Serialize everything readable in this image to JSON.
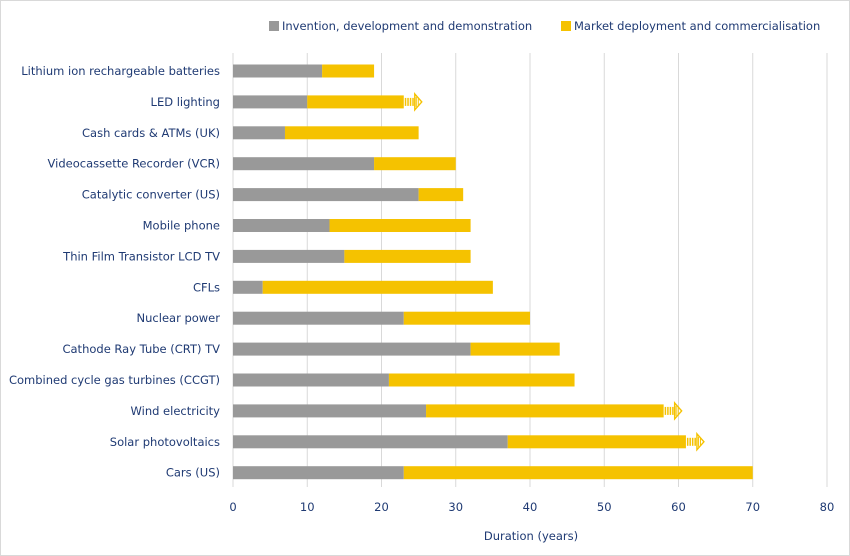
{
  "chart_data": {
    "type": "bar",
    "orientation": "horizontal",
    "stacked": true,
    "title": "",
    "xlabel": "Duration (years)",
    "ylabel": "",
    "xlim": [
      0,
      80
    ],
    "xticks": [
      0,
      10,
      20,
      30,
      40,
      50,
      60,
      70,
      80
    ],
    "grid": true,
    "legend_position": "top",
    "colors": {
      "Invention, development and demonstration": "#999999",
      "Market deployment and commercialisation": "#f5c200"
    },
    "categories": [
      "Lithium ion rechargeable batteries",
      "LED lighting",
      "Cash cards & ATMs (UK)",
      "Videocassette Recorder (VCR)",
      "Catalytic converter (US)",
      "Mobile phone",
      "Thin Film Transistor LCD TV",
      "CFLs",
      "Nuclear power",
      "Cathode Ray Tube (CRT) TV",
      "Combined cycle gas turbines (CCGT)",
      "Wind electricity",
      "Solar photovoltaics",
      "Cars (US)"
    ],
    "series": [
      {
        "name": "Invention, development and demonstration",
        "values": [
          12,
          10,
          7,
          19,
          25,
          13,
          15,
          4,
          23,
          32,
          21,
          26,
          37,
          23
        ]
      },
      {
        "name": "Market deployment and commercialisation",
        "values": [
          7,
          13,
          18,
          11,
          6,
          19,
          17,
          31,
          17,
          12,
          25,
          32,
          24,
          47
        ]
      }
    ],
    "ongoing": [
      false,
      true,
      false,
      false,
      false,
      false,
      false,
      false,
      false,
      false,
      false,
      true,
      true,
      false
    ]
  }
}
